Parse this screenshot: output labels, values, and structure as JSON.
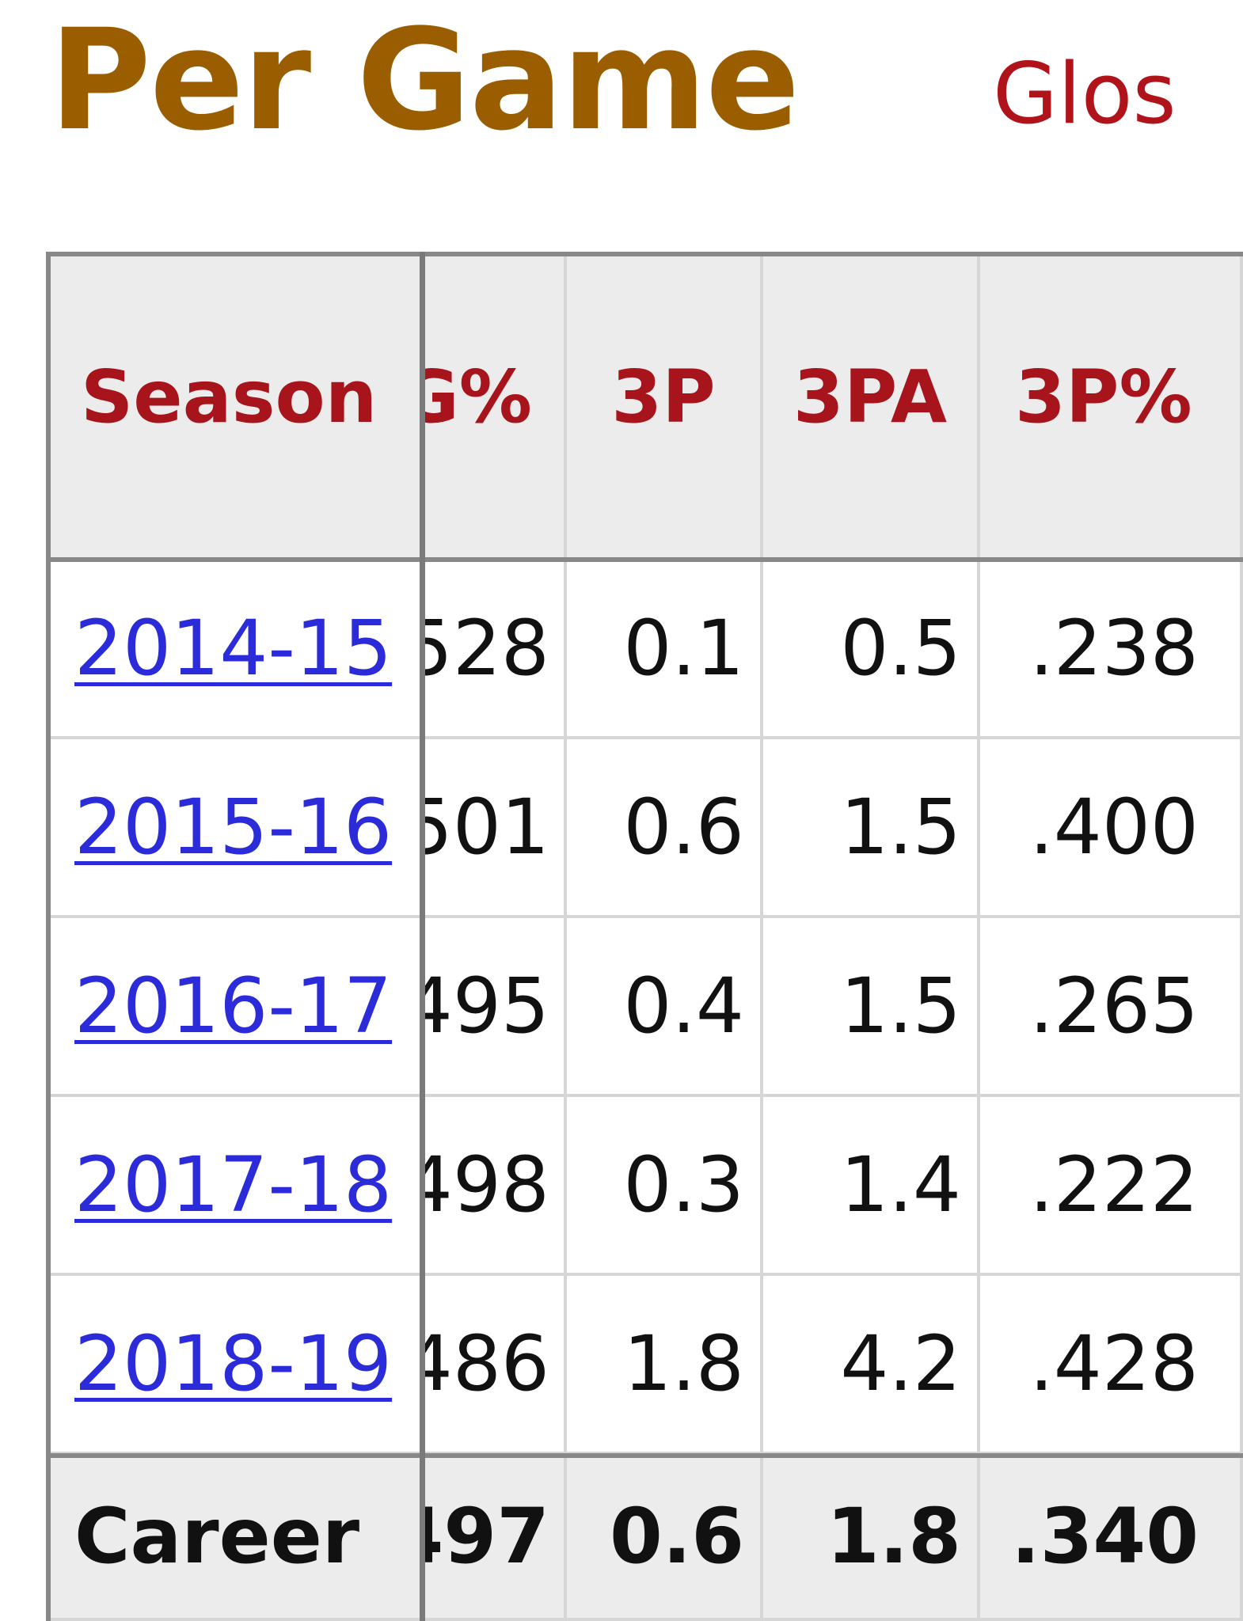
{
  "section": {
    "title": "Per Game",
    "glossary_label": "Glos"
  },
  "table": {
    "headers": [
      "Season",
      "G%",
      "3P",
      "3PA",
      "3P%"
    ],
    "rows": [
      {
        "season": "2014-15",
        "fg_pct_partial": "528",
        "three_p": "0.1",
        "three_pa": "0.5",
        "three_pct": ".238"
      },
      {
        "season": "2015-16",
        "fg_pct_partial": "501",
        "three_p": "0.6",
        "three_pa": "1.5",
        "three_pct": ".400"
      },
      {
        "season": "2016-17",
        "fg_pct_partial": "495",
        "three_p": "0.4",
        "three_pa": "1.5",
        "three_pct": ".265"
      },
      {
        "season": "2017-18",
        "fg_pct_partial": "498",
        "three_p": "0.3",
        "three_pa": "1.4",
        "three_pct": ".222"
      },
      {
        "season": "2018-19",
        "fg_pct_partial": "486",
        "three_p": "1.8",
        "three_pa": "4.2",
        "three_pct": ".428"
      }
    ],
    "footer": {
      "season": "Career",
      "fg_pct_partial": "497",
      "three_p": "0.6",
      "three_pa": "1.8",
      "three_pct": ".340"
    }
  },
  "colors": {
    "title": "#9a5e00",
    "header_text": "#a8141b",
    "link": "#2b2bd9",
    "header_bg": "#ececec"
  }
}
